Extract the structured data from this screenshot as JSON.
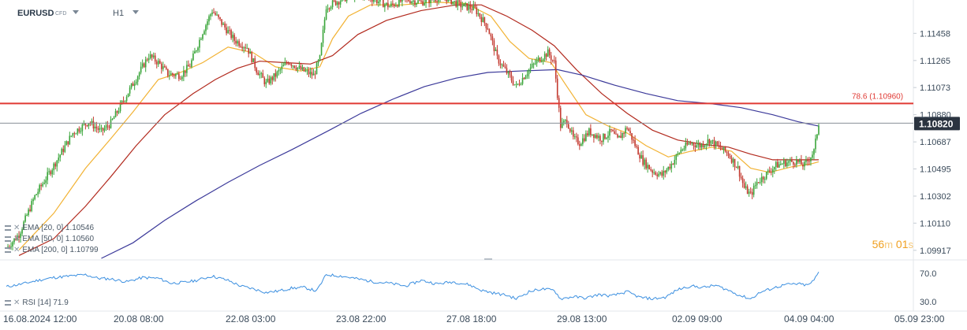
{
  "header": {
    "symbol": "EURUSD",
    "instrument_type": "CFD",
    "timeframe": "H1"
  },
  "indicators": [
    {
      "label": "EMA",
      "params": "[20, 0]",
      "value": "1.10546",
      "color": "#f2b233"
    },
    {
      "label": "EMA",
      "params": "[50, 0]",
      "value": "1.10560",
      "color": "#b22a1e"
    },
    {
      "label": "EMA",
      "params": "[200, 0]",
      "value": "1.10799",
      "color": "#3c3a9a"
    }
  ],
  "rsi": {
    "label": "RSI",
    "params": "[14]",
    "value": "71.9"
  },
  "countdown": {
    "minutes": "56",
    "minutes_unit": "m",
    "seconds": "01",
    "seconds_unit": "s"
  },
  "colors": {
    "bull": "#3aa53a",
    "bear": "#c33a30",
    "fib_line": "#e03a34",
    "rsi_line": "#3b8fe0",
    "current_price_badge": "#2b3440"
  },
  "chart_data": [
    {
      "type": "candlestick",
      "title": "EURUSD H1",
      "ylim": [
        1.0986,
        1.1165
      ],
      "y_ticks": [
        "1.11458",
        "1.11265",
        "1.11073",
        "1.10880",
        "1.10687",
        "1.10495",
        "1.10302",
        "1.10110",
        "1.09917"
      ],
      "x_tick_labels": [
        "16.08.2024 12:00",
        "20.08 08:00",
        "22.08 03:00",
        "23.08 22:00",
        "27.08 18:00",
        "29.08 13:00",
        "02.09 09:00",
        "04.09 04:00",
        "05.09 23:00"
      ],
      "current_price": "1.10820",
      "horizontal_levels": [
        {
          "label": "78.6 (1.10960)",
          "value": 1.1096
        }
      ],
      "close_path": [
        {
          "t": 0,
          "v": 1.0993
        },
        {
          "t": 8,
          "v": 1.1003
        },
        {
          "t": 18,
          "v": 1.103
        },
        {
          "t": 30,
          "v": 1.1052
        },
        {
          "t": 42,
          "v": 1.1075
        },
        {
          "t": 52,
          "v": 1.1083
        },
        {
          "t": 60,
          "v": 1.1076
        },
        {
          "t": 66,
          "v": 1.1082
        },
        {
          "t": 74,
          "v": 1.1098
        },
        {
          "t": 82,
          "v": 1.1114
        },
        {
          "t": 90,
          "v": 1.113
        },
        {
          "t": 96,
          "v": 1.1125
        },
        {
          "t": 102,
          "v": 1.1117
        },
        {
          "t": 110,
          "v": 1.1116
        },
        {
          "t": 116,
          "v": 1.1123
        },
        {
          "t": 124,
          "v": 1.1147
        },
        {
          "t": 130,
          "v": 1.1162
        },
        {
          "t": 136,
          "v": 1.1153
        },
        {
          "t": 144,
          "v": 1.1141
        },
        {
          "t": 152,
          "v": 1.1136
        },
        {
          "t": 158,
          "v": 1.112
        },
        {
          "t": 164,
          "v": 1.111
        },
        {
          "t": 170,
          "v": 1.1116
        },
        {
          "t": 178,
          "v": 1.1126
        },
        {
          "t": 186,
          "v": 1.112
        },
        {
          "t": 194,
          "v": 1.1116
        },
        {
          "t": 198,
          "v": 1.1128
        },
        {
          "t": 202,
          "v": 1.1165
        },
        {
          "t": 212,
          "v": 1.117
        },
        {
          "t": 222,
          "v": 1.1175
        },
        {
          "t": 232,
          "v": 1.117
        },
        {
          "t": 242,
          "v": 1.1165
        },
        {
          "t": 252,
          "v": 1.117
        },
        {
          "t": 262,
          "v": 1.1168
        },
        {
          "t": 276,
          "v": 1.1172
        },
        {
          "t": 286,
          "v": 1.1166
        },
        {
          "t": 296,
          "v": 1.1163
        },
        {
          "t": 304,
          "v": 1.115
        },
        {
          "t": 310,
          "v": 1.1128
        },
        {
          "t": 316,
          "v": 1.1118
        },
        {
          "t": 322,
          "v": 1.1108
        },
        {
          "t": 330,
          "v": 1.112
        },
        {
          "t": 336,
          "v": 1.1127
        },
        {
          "t": 342,
          "v": 1.1132
        },
        {
          "t": 346,
          "v": 1.1125
        },
        {
          "t": 350,
          "v": 1.108
        },
        {
          "t": 354,
          "v": 1.1084
        },
        {
          "t": 358,
          "v": 1.1071
        },
        {
          "t": 362,
          "v": 1.1068
        },
        {
          "t": 368,
          "v": 1.1076
        },
        {
          "t": 376,
          "v": 1.1071
        },
        {
          "t": 382,
          "v": 1.1076
        },
        {
          "t": 386,
          "v": 1.107
        },
        {
          "t": 392,
          "v": 1.1079
        },
        {
          "t": 398,
          "v": 1.1064
        },
        {
          "t": 402,
          "v": 1.1055
        },
        {
          "t": 408,
          "v": 1.1048
        },
        {
          "t": 414,
          "v": 1.1045
        },
        {
          "t": 420,
          "v": 1.1053
        },
        {
          "t": 426,
          "v": 1.1063
        },
        {
          "t": 432,
          "v": 1.1068
        },
        {
          "t": 438,
          "v": 1.1066
        },
        {
          "t": 444,
          "v": 1.107
        },
        {
          "t": 450,
          "v": 1.1065
        },
        {
          "t": 456,
          "v": 1.106
        },
        {
          "t": 462,
          "v": 1.105
        },
        {
          "t": 466,
          "v": 1.1036
        },
        {
          "t": 470,
          "v": 1.1031
        },
        {
          "t": 474,
          "v": 1.104
        },
        {
          "t": 480,
          "v": 1.1046
        },
        {
          "t": 486,
          "v": 1.1052
        },
        {
          "t": 492,
          "v": 1.1054
        },
        {
          "t": 498,
          "v": 1.1055
        },
        {
          "t": 504,
          "v": 1.1052
        },
        {
          "t": 510,
          "v": 1.1062
        },
        {
          "t": 513,
          "v": 1.1082
        }
      ],
      "series": [
        {
          "name": "EMA [20, 0]",
          "points": [
            {
              "t": 8,
              "v": 1.0992
            },
            {
              "t": 30,
              "v": 1.1018
            },
            {
              "t": 50,
              "v": 1.105
            },
            {
              "t": 66,
              "v": 1.1071
            },
            {
              "t": 80,
              "v": 1.109
            },
            {
              "t": 96,
              "v": 1.1113
            },
            {
              "t": 110,
              "v": 1.1118
            },
            {
              "t": 124,
              "v": 1.1125
            },
            {
              "t": 140,
              "v": 1.1136
            },
            {
              "t": 156,
              "v": 1.1132
            },
            {
              "t": 170,
              "v": 1.1122
            },
            {
              "t": 186,
              "v": 1.1119
            },
            {
              "t": 198,
              "v": 1.1122
            },
            {
              "t": 206,
              "v": 1.1142
            },
            {
              "t": 216,
              "v": 1.1158
            },
            {
              "t": 230,
              "v": 1.1166
            },
            {
              "t": 250,
              "v": 1.1166
            },
            {
              "t": 270,
              "v": 1.1168
            },
            {
              "t": 290,
              "v": 1.1167
            },
            {
              "t": 306,
              "v": 1.1158
            },
            {
              "t": 318,
              "v": 1.114
            },
            {
              "t": 330,
              "v": 1.1128
            },
            {
              "t": 344,
              "v": 1.1125
            },
            {
              "t": 354,
              "v": 1.1108
            },
            {
              "t": 366,
              "v": 1.1088
            },
            {
              "t": 380,
              "v": 1.108
            },
            {
              "t": 392,
              "v": 1.1075
            },
            {
              "t": 404,
              "v": 1.1066
            },
            {
              "t": 418,
              "v": 1.1058
            },
            {
              "t": 432,
              "v": 1.1062
            },
            {
              "t": 446,
              "v": 1.1065
            },
            {
              "t": 458,
              "v": 1.1062
            },
            {
              "t": 470,
              "v": 1.105
            },
            {
              "t": 482,
              "v": 1.1047
            },
            {
              "t": 496,
              "v": 1.1051
            },
            {
              "t": 508,
              "v": 1.1053
            },
            {
              "t": 513,
              "v": 1.10546
            }
          ]
        },
        {
          "name": "EMA [50, 0]",
          "points": [
            {
              "t": 8,
              "v": 1.0988
            },
            {
              "t": 30,
              "v": 1.1
            },
            {
              "t": 50,
              "v": 1.1023
            },
            {
              "t": 66,
              "v": 1.1044
            },
            {
              "t": 82,
              "v": 1.1066
            },
            {
              "t": 100,
              "v": 1.1088
            },
            {
              "t": 118,
              "v": 1.1103
            },
            {
              "t": 132,
              "v": 1.1113
            },
            {
              "t": 146,
              "v": 1.1121
            },
            {
              "t": 160,
              "v": 1.1126
            },
            {
              "t": 176,
              "v": 1.1125
            },
            {
              "t": 192,
              "v": 1.1124
            },
            {
              "t": 206,
              "v": 1.113
            },
            {
              "t": 222,
              "v": 1.1145
            },
            {
              "t": 240,
              "v": 1.1155
            },
            {
              "t": 262,
              "v": 1.1162
            },
            {
              "t": 284,
              "v": 1.1166
            },
            {
              "t": 300,
              "v": 1.1166
            },
            {
              "t": 316,
              "v": 1.1158
            },
            {
              "t": 332,
              "v": 1.1148
            },
            {
              "t": 346,
              "v": 1.1137
            },
            {
              "t": 360,
              "v": 1.112
            },
            {
              "t": 376,
              "v": 1.1103
            },
            {
              "t": 392,
              "v": 1.1089
            },
            {
              "t": 408,
              "v": 1.1077
            },
            {
              "t": 424,
              "v": 1.107
            },
            {
              "t": 440,
              "v": 1.1067
            },
            {
              "t": 456,
              "v": 1.1065
            },
            {
              "t": 470,
              "v": 1.106
            },
            {
              "t": 484,
              "v": 1.1056
            },
            {
              "t": 500,
              "v": 1.1056
            },
            {
              "t": 513,
              "v": 1.1056
            }
          ]
        },
        {
          "name": "EMA [200, 0]",
          "points": [
            {
              "t": 60,
              "v": 1.0986
            },
            {
              "t": 80,
              "v": 1.0997
            },
            {
              "t": 100,
              "v": 1.1013
            },
            {
              "t": 120,
              "v": 1.1027
            },
            {
              "t": 140,
              "v": 1.104
            },
            {
              "t": 160,
              "v": 1.1052
            },
            {
              "t": 180,
              "v": 1.1063
            },
            {
              "t": 204,
              "v": 1.1077
            },
            {
              "t": 224,
              "v": 1.1089
            },
            {
              "t": 244,
              "v": 1.1099
            },
            {
              "t": 264,
              "v": 1.1108
            },
            {
              "t": 284,
              "v": 1.1114
            },
            {
              "t": 304,
              "v": 1.1118
            },
            {
              "t": 324,
              "v": 1.1119
            },
            {
              "t": 348,
              "v": 1.112
            },
            {
              "t": 364,
              "v": 1.1116
            },
            {
              "t": 384,
              "v": 1.1109
            },
            {
              "t": 404,
              "v": 1.1103
            },
            {
              "t": 424,
              "v": 1.1098
            },
            {
              "t": 444,
              "v": 1.1096
            },
            {
              "t": 464,
              "v": 1.1093
            },
            {
              "t": 484,
              "v": 1.1088
            },
            {
              "t": 500,
              "v": 1.1083
            },
            {
              "t": 513,
              "v": 1.10799
            }
          ]
        }
      ]
    },
    {
      "type": "line",
      "title": "RSI [14]",
      "ylim": [
        20,
        80
      ],
      "y_ticks": [
        "70.0",
        "30.0"
      ],
      "series": [
        {
          "name": "RSI [14]",
          "points": [
            {
              "t": 0,
              "v": 51
            },
            {
              "t": 10,
              "v": 55
            },
            {
              "t": 20,
              "v": 60
            },
            {
              "t": 30,
              "v": 64
            },
            {
              "t": 40,
              "v": 66
            },
            {
              "t": 50,
              "v": 68
            },
            {
              "t": 58,
              "v": 63
            },
            {
              "t": 66,
              "v": 62
            },
            {
              "t": 76,
              "v": 58
            },
            {
              "t": 86,
              "v": 64
            },
            {
              "t": 96,
              "v": 63
            },
            {
              "t": 104,
              "v": 56
            },
            {
              "t": 112,
              "v": 57
            },
            {
              "t": 120,
              "v": 60
            },
            {
              "t": 130,
              "v": 66
            },
            {
              "t": 140,
              "v": 60
            },
            {
              "t": 148,
              "v": 52
            },
            {
              "t": 156,
              "v": 48
            },
            {
              "t": 164,
              "v": 43
            },
            {
              "t": 172,
              "v": 45
            },
            {
              "t": 180,
              "v": 49
            },
            {
              "t": 188,
              "v": 50
            },
            {
              "t": 196,
              "v": 45
            },
            {
              "t": 202,
              "v": 68
            },
            {
              "t": 212,
              "v": 66
            },
            {
              "t": 222,
              "v": 62
            },
            {
              "t": 232,
              "v": 58
            },
            {
              "t": 242,
              "v": 56
            },
            {
              "t": 252,
              "v": 52
            },
            {
              "t": 262,
              "v": 60
            },
            {
              "t": 272,
              "v": 55
            },
            {
              "t": 282,
              "v": 58
            },
            {
              "t": 292,
              "v": 54
            },
            {
              "t": 300,
              "v": 46
            },
            {
              "t": 308,
              "v": 42
            },
            {
              "t": 316,
              "v": 39
            },
            {
              "t": 322,
              "v": 34
            },
            {
              "t": 330,
              "v": 44
            },
            {
              "t": 338,
              "v": 48
            },
            {
              "t": 346,
              "v": 46
            },
            {
              "t": 350,
              "v": 34
            },
            {
              "t": 358,
              "v": 37
            },
            {
              "t": 366,
              "v": 35
            },
            {
              "t": 374,
              "v": 40
            },
            {
              "t": 382,
              "v": 38
            },
            {
              "t": 392,
              "v": 44
            },
            {
              "t": 400,
              "v": 36
            },
            {
              "t": 408,
              "v": 34
            },
            {
              "t": 416,
              "v": 36
            },
            {
              "t": 424,
              "v": 47
            },
            {
              "t": 432,
              "v": 52
            },
            {
              "t": 440,
              "v": 50
            },
            {
              "t": 448,
              "v": 53
            },
            {
              "t": 456,
              "v": 46
            },
            {
              "t": 464,
              "v": 38
            },
            {
              "t": 470,
              "v": 34
            },
            {
              "t": 476,
              "v": 43
            },
            {
              "t": 484,
              "v": 49
            },
            {
              "t": 492,
              "v": 54
            },
            {
              "t": 500,
              "v": 55
            },
            {
              "t": 506,
              "v": 53
            },
            {
              "t": 510,
              "v": 60
            },
            {
              "t": 513,
              "v": 71.9
            }
          ]
        }
      ]
    }
  ]
}
